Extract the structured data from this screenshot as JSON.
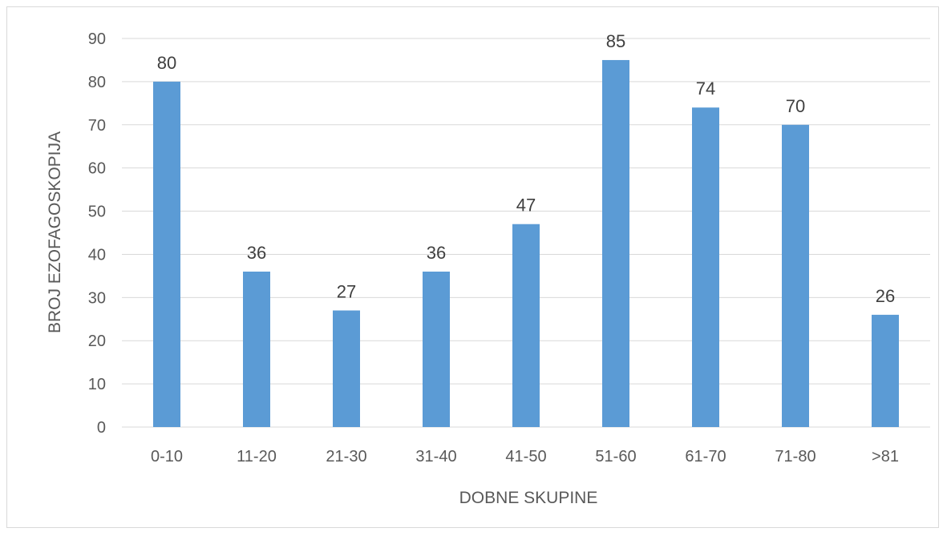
{
  "chart_data": {
    "type": "bar",
    "title": "",
    "xlabel": "DOBNE SKUPINE",
    "ylabel": "BROJ EZOFAGOSKOPIJA",
    "categories": [
      "0-10",
      "11-20",
      "21-30",
      "31-40",
      "41-50",
      "51-60",
      "61-70",
      "71-80",
      ">81"
    ],
    "values": [
      80,
      36,
      27,
      36,
      47,
      85,
      74,
      70,
      26
    ],
    "ylim": [
      0,
      90
    ],
    "yticks": [
      0,
      10,
      20,
      30,
      40,
      50,
      60,
      70,
      80,
      90
    ],
    "grid": true,
    "legend": "none",
    "data_labels": true,
    "bar_color": "#5b9bd5"
  }
}
